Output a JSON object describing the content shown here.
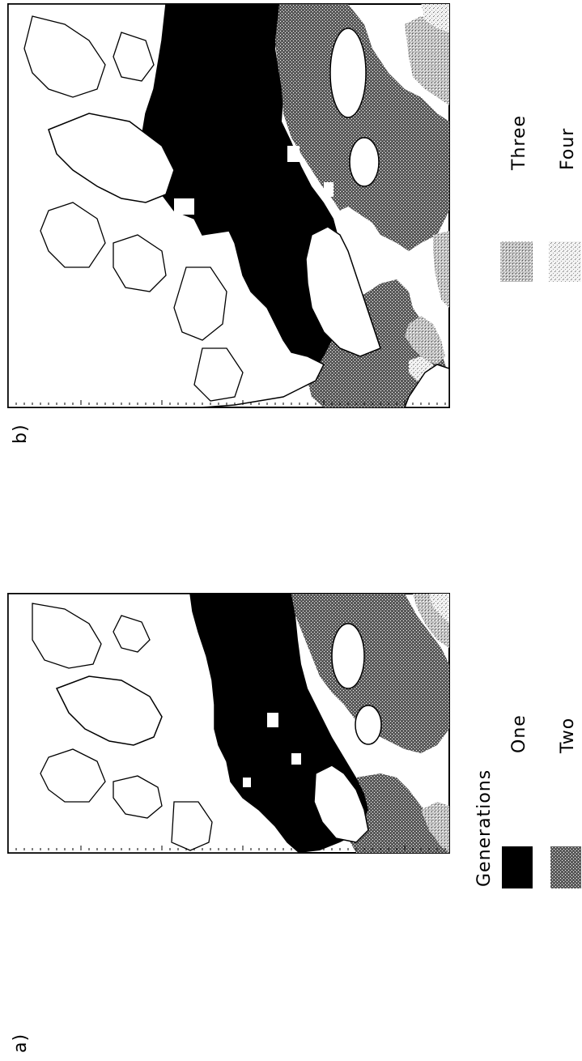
{
  "panels": [
    {
      "id": "a",
      "label": "a)"
    },
    {
      "id": "b",
      "label": "b)"
    }
  ],
  "legend": {
    "title": "Generations",
    "items": [
      {
        "label": "One",
        "pattern": "solid-black"
      },
      {
        "label": "Two",
        "pattern": "dark-stipple"
      },
      {
        "label": "Three",
        "pattern": "medium-stipple"
      },
      {
        "label": "Four",
        "pattern": "light-stipple"
      }
    ]
  },
  "colors": {
    "one": "#000000",
    "two": "#4a4a4a",
    "three": "#a8a8a8",
    "four": "#e2e2e2",
    "land": "#ffffff",
    "coast": "#000000"
  }
}
